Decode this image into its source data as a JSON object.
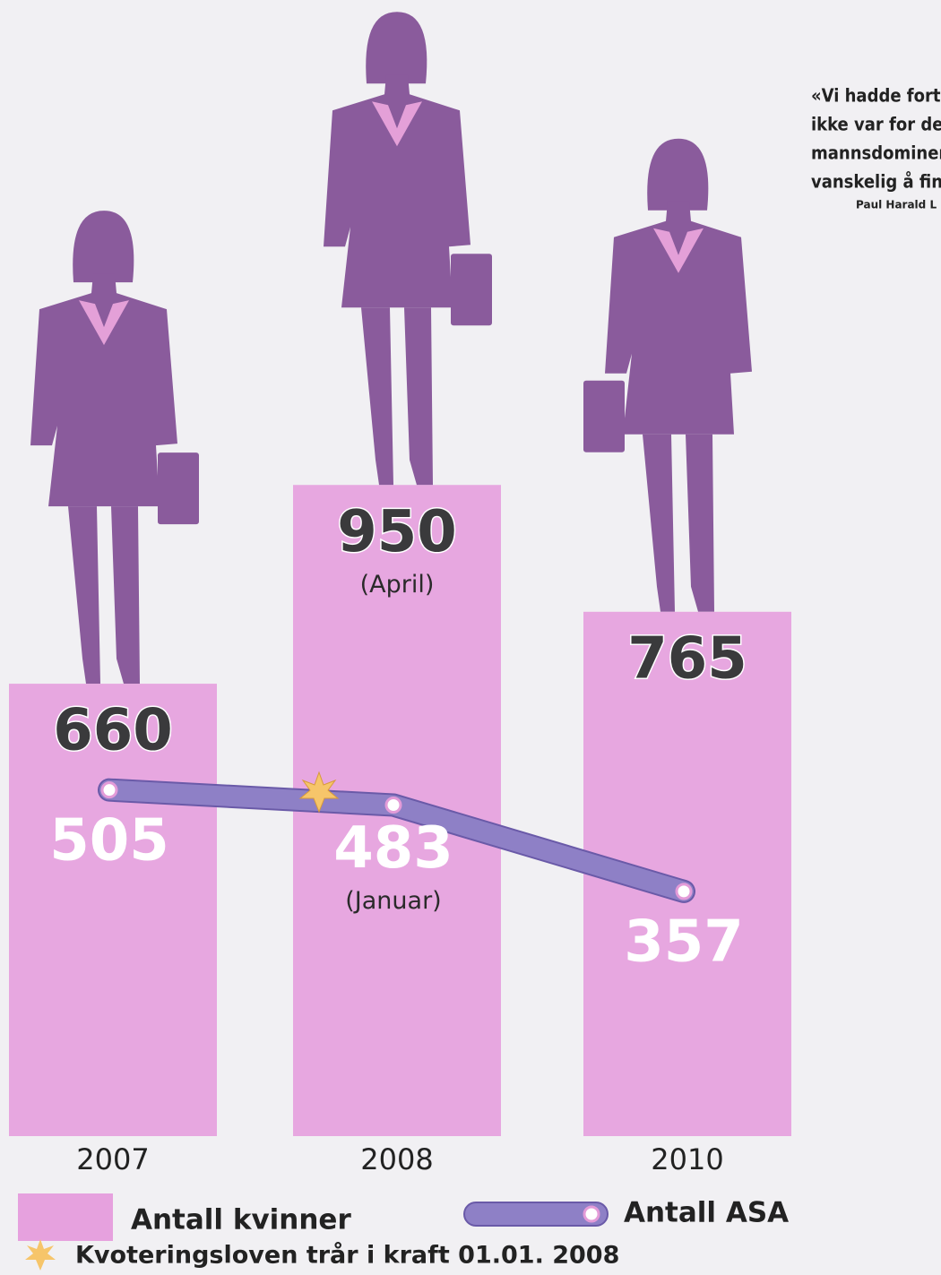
{
  "chart_data": {
    "type": "bar",
    "categories": [
      "2007",
      "2008",
      "2010"
    ],
    "series": [
      {
        "name": "Antall kvinner",
        "type": "bar",
        "color": "#e6a1de",
        "values": [
          660,
          950,
          765
        ]
      },
      {
        "name": "Antall ASA",
        "type": "line",
        "color": "#8e80c6",
        "values": [
          505,
          483,
          357
        ]
      }
    ],
    "annotations": [
      {
        "series": "Antall kvinner",
        "category": "2008",
        "text": "(April)"
      },
      {
        "series": "Antall ASA",
        "category": "2008",
        "text": "(Januar)"
      }
    ],
    "footnote": "Kvoteringsloven trår i kraft 01.01. 2008"
  },
  "quote": {
    "lines": [
      "«Vi hadde forts",
      "ikke var for der",
      "mannsdominer",
      "vanskelig å finn"
    ],
    "author": "Paul Harald L"
  }
}
